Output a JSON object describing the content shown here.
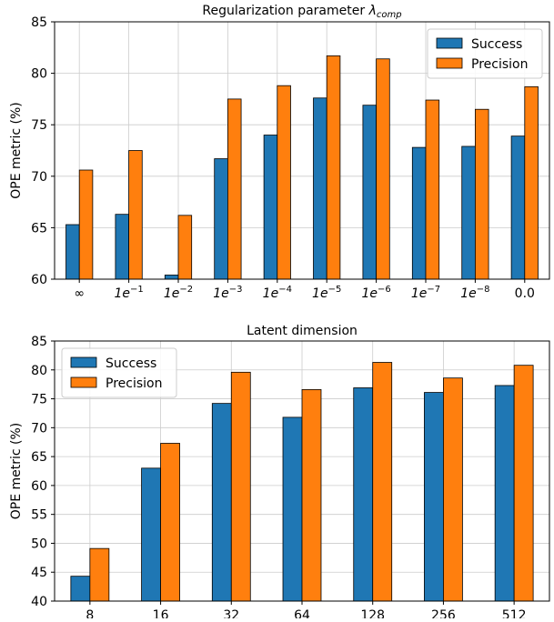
{
  "colors": {
    "success": "#1f77b4",
    "precision": "#ff7f0e",
    "grid": "#cccccc",
    "axis": "#000000"
  },
  "chart_data": [
    {
      "type": "bar",
      "title_main": "Regularization parameter ",
      "title_symbol": "λ",
      "title_subscript": "comp",
      "ylabel": "OPE metric (%)",
      "xlabel": "",
      "ylim": [
        60,
        85
      ],
      "yticks": [
        60,
        65,
        70,
        75,
        80,
        85
      ],
      "grid": true,
      "legend_position": "upper-right",
      "categories": [
        {
          "base": "∞",
          "exp": ""
        },
        {
          "base": "1e",
          "exp": "−1"
        },
        {
          "base": "1e",
          "exp": "−2"
        },
        {
          "base": "1e",
          "exp": "−3"
        },
        {
          "base": "1e",
          "exp": "−4"
        },
        {
          "base": "1e",
          "exp": "−5"
        },
        {
          "base": "1e",
          "exp": "−6"
        },
        {
          "base": "1e",
          "exp": "−7"
        },
        {
          "base": "1e",
          "exp": "−8"
        },
        {
          "base": "0.0",
          "exp": ""
        }
      ],
      "series": [
        {
          "name": "Success",
          "values": [
            65.3,
            66.3,
            60.4,
            71.7,
            74.0,
            77.6,
            76.9,
            72.8,
            72.9,
            73.9
          ]
        },
        {
          "name": "Precision",
          "values": [
            70.6,
            72.5,
            66.2,
            77.5,
            78.8,
            81.7,
            81.4,
            77.4,
            76.5,
            78.7
          ]
        }
      ]
    },
    {
      "type": "bar",
      "title_main": "Latent dimension",
      "title_symbol": "",
      "title_subscript": "",
      "ylabel": "OPE metric (%)",
      "xlabel": "",
      "ylim": [
        40,
        85
      ],
      "yticks": [
        40,
        45,
        50,
        55,
        60,
        65,
        70,
        75,
        80,
        85
      ],
      "grid": true,
      "legend_position": "upper-left",
      "categories": [
        {
          "base": "8",
          "exp": ""
        },
        {
          "base": "16",
          "exp": ""
        },
        {
          "base": "32",
          "exp": ""
        },
        {
          "base": "64",
          "exp": ""
        },
        {
          "base": "128",
          "exp": ""
        },
        {
          "base": "256",
          "exp": ""
        },
        {
          "base": "512",
          "exp": ""
        }
      ],
      "series": [
        {
          "name": "Success",
          "values": [
            44.3,
            63.0,
            74.2,
            71.8,
            76.9,
            76.1,
            77.3
          ]
        },
        {
          "name": "Precision",
          "values": [
            49.1,
            67.3,
            79.6,
            76.6,
            81.3,
            78.6,
            80.8
          ]
        }
      ]
    }
  ]
}
